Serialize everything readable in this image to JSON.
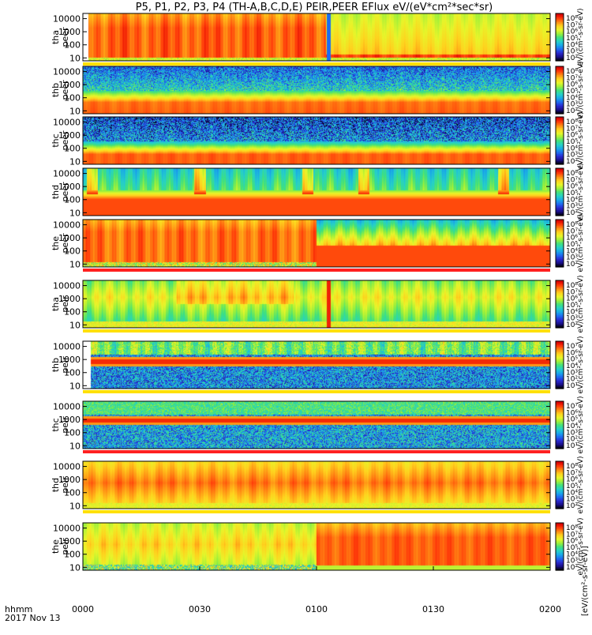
{
  "chart_data": {
    "type": "heatmap",
    "title": "P5, P1, P2, P3, P4 (TH-A,B,C,D,E) PEIR,PEER EFlux eV/(eV*cm²*sec*sr)",
    "x_ticks": [
      "0000",
      "0030",
      "0100",
      "0130",
      "0200"
    ],
    "x_range_minutes": [
      0,
      120
    ],
    "x_label_line1": "hhmm",
    "x_label_line2": "2017 Nov 13",
    "y_ticks": [
      "10",
      "100",
      "1000",
      "10000"
    ],
    "y_tick_values": [
      10,
      100,
      1000,
      10000
    ],
    "y_range_eV": [
      6,
      25000
    ],
    "colorbar_axis_label": "[eV/(cm²-s-sr-eV)]",
    "colorbar_units_label": "eV/(cm²-s-sr-eV)",
    "colorbar_ticks_e8": [
      "10⁸",
      "10⁷",
      "10⁶",
      "10⁵",
      "10⁴",
      "10³",
      "10²"
    ],
    "colorbar_ticks_e7": [
      "10⁷",
      "10⁶",
      "10⁵",
      "10⁴",
      "10³",
      "10²",
      "10¹"
    ],
    "panels": [
      {
        "label1": "tha",
        "label2": "peer",
        "cbar": "e8",
        "data_start_min": 1.5,
        "profile": "tha_peer"
      },
      {
        "label1": "thb",
        "label2": "peer",
        "cbar": "e8",
        "data_start_min": 0,
        "profile": "thb_peer"
      },
      {
        "label1": "thc",
        "label2": "peer",
        "cbar": "e8",
        "data_start_min": 0,
        "profile": "thc_peer"
      },
      {
        "label1": "thd",
        "label2": "peer",
        "cbar": "e8",
        "data_start_min": 0,
        "profile": "thd_peer"
      },
      {
        "label1": "the",
        "label2": "peer",
        "cbar": "e8",
        "data_start_min": 0,
        "profile": "the_peer"
      },
      {
        "label1": "tha",
        "label2": "peir",
        "cbar": "e8",
        "data_start_min": 0,
        "profile": "tha_peir"
      },
      {
        "label1": "thb",
        "label2": "peir",
        "cbar": "e7",
        "data_start_min": 2,
        "profile": "thb_peir"
      },
      {
        "label1": "thc",
        "label2": "peir",
        "cbar": "e7",
        "data_start_min": 0,
        "profile": "thc_peir"
      },
      {
        "label1": "thd",
        "label2": "peir",
        "cbar": "e8",
        "data_start_min": 0,
        "profile": "thd_peir"
      },
      {
        "label1": "the",
        "label2": "peir",
        "cbar": "e8",
        "data_start_min": 0,
        "profile": "the_peir"
      }
    ],
    "colormap": [
      "#000000",
      "#1a0f8a",
      "#2a2ad0",
      "#1e6cf0",
      "#19a8e8",
      "#26d0c8",
      "#3fe07e",
      "#9cf03a",
      "#e8f52a",
      "#ffd21e",
      "#ff8c14",
      "#ff3a0a",
      "#d80000"
    ]
  }
}
